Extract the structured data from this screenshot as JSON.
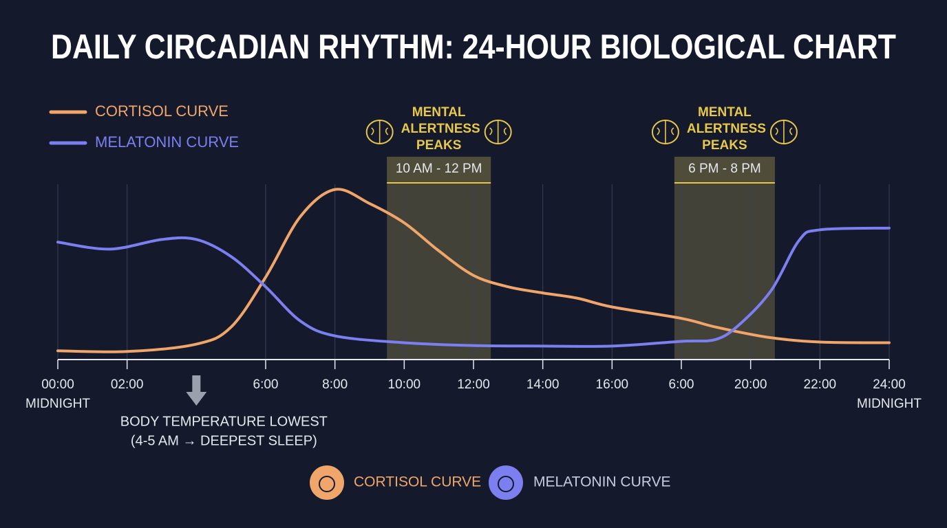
{
  "chart_data": {
    "type": "line",
    "title": "DAILY CIRCADIAN RHYTHM: 24-HOUR BIOLOGICAL CHART",
    "xlim": [
      0,
      24
    ],
    "ylim": [
      0,
      100
    ],
    "xticks": [
      {
        "value": 0,
        "label": "00:00",
        "sublabel": "MIDNIGHT"
      },
      {
        "value": 2,
        "label": "02:00"
      },
      {
        "value": 6,
        "label": "6:00"
      },
      {
        "value": 8,
        "label": "8:00"
      },
      {
        "value": 10,
        "label": "10:00"
      },
      {
        "value": 12,
        "label": "12:00"
      },
      {
        "value": 14,
        "label": "14:00"
      },
      {
        "value": 16,
        "label": "16:00"
      },
      {
        "value": 18,
        "label": "6:00"
      },
      {
        "value": 20,
        "label": "20:00"
      },
      {
        "value": 22,
        "label": "22:00"
      },
      {
        "value": 24,
        "label": "24:00",
        "sublabel": "MIDNIGHT"
      }
    ],
    "grid": true,
    "series": [
      {
        "name": "CORTISOL CURVE",
        "color": "#f0a56a",
        "x": [
          0,
          2,
          4,
          5,
          6,
          7,
          8,
          9,
          10,
          11,
          12,
          13,
          14,
          15,
          16,
          18,
          19,
          20.5,
          22,
          24
        ],
        "values": [
          5,
          4.6,
          8.8,
          18.5,
          47,
          81.5,
          97,
          89,
          78,
          62,
          48,
          41.5,
          38,
          35,
          30,
          23.5,
          18.5,
          12.7,
          10,
          9.6
        ]
      },
      {
        "name": "MELATONIN CURVE",
        "color": "#7b7ff0",
        "x": [
          0,
          1.5,
          3,
          4,
          5,
          6,
          7,
          8,
          10,
          12,
          14,
          16,
          18,
          19,
          19.7,
          20.6,
          21.4,
          22,
          24
        ],
        "values": [
          67,
          63,
          68.5,
          68.5,
          58.8,
          41.5,
          22,
          13.5,
          9.6,
          8,
          7.7,
          7.7,
          10.4,
          11.5,
          20.4,
          39.6,
          68,
          74,
          75
        ]
      }
    ],
    "highlights": [
      {
        "title": "MENTAL ALERTNESS PEAKS",
        "label": "10 AM - 12 PM",
        "start": 9.5,
        "end": 12.5
      },
      {
        "title": "MENTAL ALERTNESS PEAKS",
        "label": "6 PM - 8 PM",
        "start": 17.8,
        "end": 20.7
      }
    ],
    "annotation": {
      "x": 4,
      "lines": [
        "BODY TEMPERATURE LOWEST",
        "(4-5 AM → DEEPEST SLEEP)"
      ]
    }
  }
}
